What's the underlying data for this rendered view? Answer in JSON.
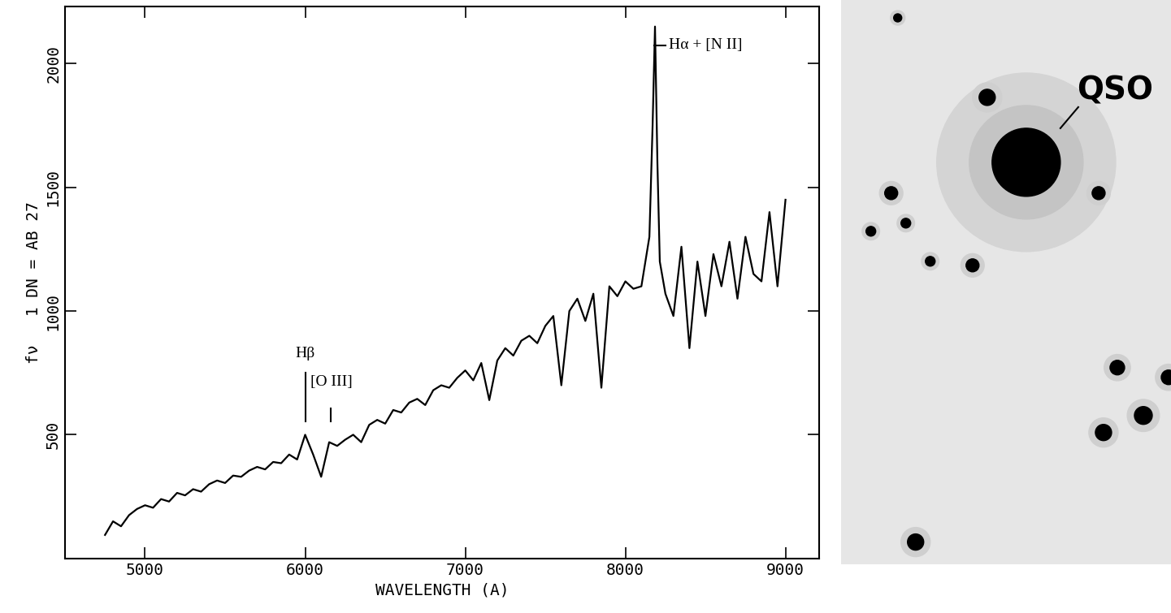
{
  "chart_data": {
    "type": "line",
    "xlabel": "WAVELENGTH (A)",
    "ylabel": "fν   1 DN = AB 27",
    "x": [
      4750,
      4800,
      4850,
      4900,
      4950,
      5000,
      5050,
      5100,
      5150,
      5200,
      5250,
      5300,
      5350,
      5400,
      5450,
      5500,
      5550,
      5600,
      5650,
      5700,
      5750,
      5800,
      5850,
      5900,
      5950,
      6000,
      6050,
      6100,
      6150,
      6200,
      6250,
      6300,
      6350,
      6400,
      6450,
      6500,
      6550,
      6600,
      6650,
      6700,
      6750,
      6800,
      6850,
      6900,
      6950,
      7000,
      7050,
      7100,
      7150,
      7200,
      7250,
      7300,
      7350,
      7400,
      7450,
      7500,
      7550,
      7600,
      7650,
      7700,
      7750,
      7800,
      7850,
      7900,
      7950,
      8000,
      8050,
      8100,
      8150,
      8170,
      8185,
      8200,
      8215,
      8250,
      8300,
      8350,
      8400,
      8450,
      8500,
      8550,
      8600,
      8650,
      8700,
      8750,
      8800,
      8850,
      8900,
      8950,
      9000
    ],
    "values": [
      95,
      150,
      130,
      175,
      200,
      215,
      205,
      240,
      230,
      265,
      255,
      280,
      270,
      300,
      315,
      305,
      335,
      330,
      355,
      370,
      360,
      390,
      385,
      420,
      400,
      500,
      420,
      330,
      470,
      455,
      480,
      500,
      470,
      540,
      560,
      545,
      600,
      590,
      630,
      645,
      620,
      680,
      700,
      690,
      730,
      760,
      720,
      790,
      640,
      800,
      850,
      820,
      880,
      900,
      870,
      940,
      980,
      700,
      1000,
      1050,
      960,
      1070,
      690,
      1100,
      1060,
      1120,
      1090,
      1100,
      1300,
      1750,
      2150,
      1600,
      1200,
      1070,
      980,
      1260,
      850,
      1200,
      980,
      1230,
      1100,
      1280,
      1050,
      1300,
      1150,
      1120,
      1400,
      1100,
      1450
    ],
    "color": "#000000",
    "xlim": [
      4500,
      9210
    ],
    "ylim": [
      0,
      2230
    ],
    "xticks": [
      5000,
      6000,
      7000,
      8000,
      9000
    ],
    "yticks": [
      500,
      1000,
      1500,
      2000
    ],
    "annotations": [
      {
        "text": "Hβ",
        "x": 6000,
        "y": 800,
        "line_from": 555,
        "line_to": 751
      },
      {
        "text": "[O III]",
        "x": 6162,
        "y": 686,
        "line_from": 555,
        "line_to": 605
      },
      {
        "text": "Hα + [N II]",
        "x": 8270,
        "y": 2075
      }
    ],
    "image_label": "QSO"
  }
}
